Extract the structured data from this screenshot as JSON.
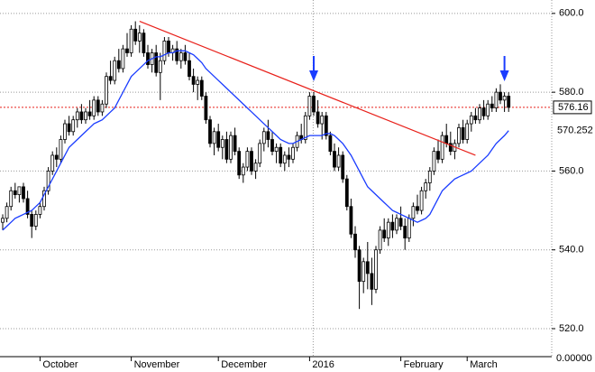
{
  "chart_data": {
    "type": "candlestick",
    "categories": [
      null,
      null,
      null,
      null,
      null,
      null,
      null,
      null,
      null,
      "October",
      null,
      null,
      null,
      null,
      null,
      null,
      null,
      null,
      null,
      null,
      null,
      null,
      null,
      null,
      null,
      null,
      null,
      null,
      null,
      null,
      null,
      "November",
      null,
      null,
      null,
      null,
      null,
      null,
      null,
      null,
      null,
      null,
      null,
      null,
      null,
      null,
      null,
      null,
      null,
      null,
      null,
      null,
      "December",
      null,
      null,
      null,
      null,
      null,
      null,
      null,
      null,
      null,
      null,
      null,
      null,
      null,
      null,
      null,
      null,
      null,
      null,
      null,
      null,
      null,
      "2016",
      null,
      null,
      null,
      null,
      null,
      null,
      null,
      null,
      null,
      null,
      null,
      null,
      null,
      null,
      null,
      null,
      null,
      null,
      null,
      null,
      null,
      "February",
      null,
      null,
      null,
      null,
      null,
      null,
      null,
      null,
      null,
      null,
      null,
      null,
      null,
      null,
      null,
      "March",
      null,
      null,
      null,
      null,
      null,
      null,
      null,
      null,
      null,
      null
    ],
    "ohlc": [
      [
        547,
        549,
        545,
        548
      ],
      [
        548,
        552,
        547,
        551
      ],
      [
        551,
        556,
        550,
        555
      ],
      [
        555,
        557,
        553,
        554
      ],
      [
        554,
        556,
        552,
        556
      ],
      [
        556,
        557,
        552,
        553
      ],
      [
        553,
        555,
        548,
        549
      ],
      [
        549,
        550,
        543,
        546
      ],
      [
        546,
        550,
        545,
        549
      ],
      [
        549,
        552,
        548,
        551
      ],
      [
        551,
        556,
        550,
        555
      ],
      [
        555,
        561,
        554,
        560
      ],
      [
        560,
        565,
        559,
        564
      ],
      [
        564,
        566,
        561,
        563
      ],
      [
        563,
        569,
        562,
        568
      ],
      [
        568,
        573,
        567,
        572
      ],
      [
        572,
        574,
        569,
        570
      ],
      [
        570,
        574,
        569,
        573
      ],
      [
        573,
        576,
        571,
        575
      ],
      [
        575,
        577,
        572,
        573
      ],
      [
        573,
        576,
        572,
        575
      ],
      [
        575,
        578,
        573,
        574
      ],
      [
        574,
        579,
        573,
        578
      ],
      [
        578,
        579,
        574,
        575
      ],
      [
        575,
        578,
        574,
        577
      ],
      [
        577,
        585,
        576,
        584
      ],
      [
        584,
        588,
        582,
        583
      ],
      [
        583,
        589,
        582,
        588
      ],
      [
        588,
        591,
        585,
        586
      ],
      [
        586,
        592,
        585,
        591
      ],
      [
        591,
        595,
        589,
        590
      ],
      [
        590,
        597,
        589,
        596
      ],
      [
        596,
        598,
        592,
        593
      ],
      [
        593,
        597,
        590,
        595
      ],
      [
        595,
        596,
        589,
        590
      ],
      [
        590,
        592,
        586,
        587
      ],
      [
        587,
        591,
        585,
        590
      ],
      [
        590,
        592,
        584,
        585
      ],
      [
        585,
        590,
        578,
        588
      ],
      [
        588,
        594,
        587,
        593
      ],
      [
        593,
        594,
        589,
        590
      ],
      [
        590,
        592,
        588,
        591
      ],
      [
        591,
        593,
        587,
        588
      ],
      [
        588,
        591,
        586,
        590
      ],
      [
        590,
        592,
        587,
        588
      ],
      [
        588,
        590,
        583,
        584
      ],
      [
        584,
        586,
        580,
        582
      ],
      [
        582,
        584,
        578,
        583
      ],
      [
        583,
        584,
        578,
        579
      ],
      [
        579,
        580,
        572,
        573
      ],
      [
        573,
        574,
        566,
        567
      ],
      [
        567,
        571,
        564,
        570
      ],
      [
        570,
        572,
        565,
        566
      ],
      [
        566,
        569,
        563,
        568
      ],
      [
        568,
        570,
        562,
        563
      ],
      [
        563,
        570,
        562,
        569
      ],
      [
        569,
        571,
        564,
        565
      ],
      [
        565,
        566,
        558,
        559
      ],
      [
        559,
        562,
        557,
        561
      ],
      [
        561,
        566,
        560,
        565
      ],
      [
        565,
        566,
        559,
        560
      ],
      [
        560,
        563,
        558,
        562
      ],
      [
        562,
        568,
        561,
        567
      ],
      [
        567,
        571,
        565,
        570
      ],
      [
        570,
        573,
        566,
        568
      ],
      [
        568,
        570,
        564,
        565
      ],
      [
        565,
        567,
        562,
        566
      ],
      [
        566,
        567,
        561,
        562
      ],
      [
        562,
        565,
        560,
        564
      ],
      [
        564,
        566,
        561,
        563
      ],
      [
        563,
        567,
        562,
        566
      ],
      [
        566,
        570,
        565,
        569
      ],
      [
        569,
        572,
        567,
        568
      ],
      [
        568,
        575,
        567,
        574
      ],
      [
        574,
        580,
        573,
        579
      ],
      [
        579,
        580,
        574,
        575
      ],
      [
        575,
        578,
        571,
        572
      ],
      [
        572,
        575,
        568,
        574
      ],
      [
        574,
        575,
        568,
        569
      ],
      [
        569,
        570,
        564,
        565
      ],
      [
        565,
        567,
        560,
        561
      ],
      [
        561,
        566,
        560,
        564
      ],
      [
        564,
        565,
        557,
        558
      ],
      [
        558,
        559,
        550,
        551
      ],
      [
        551,
        553,
        543,
        544
      ],
      [
        544,
        546,
        538,
        540
      ],
      [
        540,
        541,
        525,
        532
      ],
      [
        532,
        538,
        529,
        537
      ],
      [
        537,
        542,
        530,
        534
      ],
      [
        534,
        538,
        526,
        530
      ],
      [
        530,
        541,
        529,
        540
      ],
      [
        540,
        546,
        539,
        545
      ],
      [
        545,
        548,
        542,
        543
      ],
      [
        543,
        548,
        541,
        547
      ],
      [
        547,
        549,
        543,
        545
      ],
      [
        545,
        549,
        544,
        548
      ],
      [
        548,
        551,
        545,
        546
      ],
      [
        546,
        548,
        540,
        543
      ],
      [
        543,
        549,
        542,
        548
      ],
      [
        548,
        552,
        546,
        551
      ],
      [
        551,
        554,
        549,
        550
      ],
      [
        550,
        556,
        549,
        555
      ],
      [
        555,
        558,
        553,
        557
      ],
      [
        557,
        561,
        555,
        560
      ],
      [
        560,
        566,
        559,
        565
      ],
      [
        565,
        568,
        562,
        563
      ],
      [
        563,
        570,
        562,
        569
      ],
      [
        569,
        572,
        566,
        567
      ],
      [
        567,
        570,
        564,
        565
      ],
      [
        565,
        568,
        563,
        567
      ],
      [
        567,
        572,
        566,
        571
      ],
      [
        571,
        573,
        567,
        568
      ],
      [
        568,
        573,
        567,
        572
      ],
      [
        572,
        575,
        570,
        574
      ],
      [
        574,
        576,
        572,
        573
      ],
      [
        573,
        577,
        572,
        576
      ],
      [
        576,
        578,
        573,
        574
      ],
      [
        574,
        578,
        573,
        577
      ],
      [
        577,
        579,
        575,
        576
      ],
      [
        576,
        581,
        575,
        580
      ],
      [
        580,
        582,
        577,
        578
      ],
      [
        578,
        580,
        575,
        579
      ],
      [
        579,
        580,
        575,
        576.16
      ]
    ],
    "moving_average": {
      "color": "#1a3cff",
      "values": [
        545,
        546,
        547,
        548,
        548.5,
        549,
        549.5,
        550,
        551,
        552,
        554,
        556,
        558,
        560,
        562,
        564,
        566,
        567,
        568,
        569,
        570,
        571,
        572,
        572.5,
        573,
        574,
        575,
        576,
        578,
        580,
        582,
        584,
        585,
        586,
        587,
        588,
        588.5,
        589,
        589,
        589.5,
        590,
        590,
        590.5,
        590.5,
        590.5,
        590,
        589.5,
        588.5,
        587.5,
        586,
        585,
        584,
        583,
        582,
        581,
        580,
        579,
        578,
        577,
        576,
        575,
        574,
        573,
        572,
        571,
        570,
        569,
        568,
        567.5,
        567,
        567,
        567.5,
        568,
        568.5,
        569,
        569,
        569,
        569,
        569.5,
        569.5,
        569,
        568,
        567,
        565.5,
        564,
        562,
        560,
        558,
        556,
        555,
        554,
        553,
        552,
        551,
        550,
        549.5,
        549,
        548.5,
        548,
        547.5,
        547,
        547.5,
        548,
        549,
        551,
        553,
        555,
        556,
        557,
        558,
        558.5,
        559,
        559.5,
        560,
        561,
        562,
        563,
        564,
        565.5,
        567,
        568,
        569,
        570.252
      ]
    },
    "last_close_label": "576.16",
    "ma_label": "570.252",
    "trend_line": {
      "color": "#e8201a",
      "x": [
        33,
        114
      ],
      "y": [
        598,
        564
      ]
    },
    "arrows": [
      75,
      121
    ],
    "arrow_color": "#1a3cff",
    "ylim": [
      512.9,
      603.4
    ],
    "yticks": [
      {
        "value": 520,
        "label": "520.0"
      },
      {
        "value": 540,
        "label": "540.0"
      },
      {
        "value": 560,
        "label": "560.0"
      },
      {
        "value": 580,
        "label": "580.0"
      },
      {
        "value": 600,
        "label": "600.0"
      }
    ],
    "y_bottom_label": "0.00000",
    "grid": true
  }
}
